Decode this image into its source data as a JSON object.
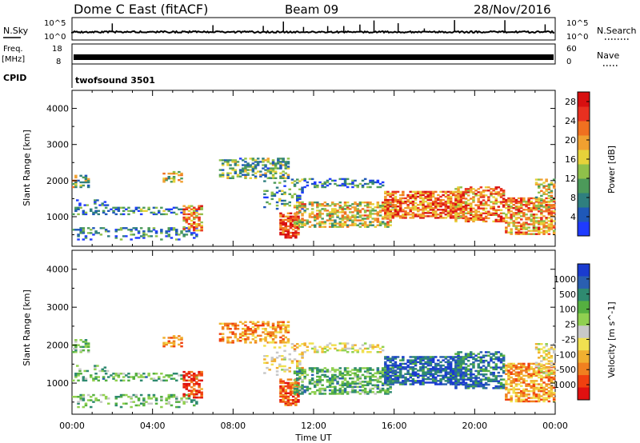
{
  "header": {
    "title": "Dome C East (fitACF)",
    "beam": "Beam 09",
    "date": "28/Nov/2016"
  },
  "param_panels": {
    "nsky": {
      "label": "N.Sky",
      "tick_top": "10^5",
      "tick_bottom": "10^0"
    },
    "nsearch": {
      "label": "N.Search",
      "tick_top": "10^5",
      "tick_bottom": "10^0",
      "line_style": "dotted"
    },
    "freq": {
      "label_1": "Freq.",
      "label_2": "[MHz]",
      "tick_top": "18",
      "tick_bottom": "8"
    },
    "nave": {
      "label": "Nave",
      "tick_top": "60",
      "tick_bottom": "0",
      "line_style": "dotted"
    },
    "cpid": {
      "label": "CPID",
      "value": "twofsound 3501"
    }
  },
  "chart_data": [
    {
      "type": "heatmap",
      "name_shown": "Power",
      "xlabel": "",
      "ylabel": "Slant Range [km]",
      "x_range": [
        "00:00",
        "24:00"
      ],
      "ylim": [
        180,
        4500
      ],
      "yticks": [
        "1000",
        "2000",
        "3000",
        "4000"
      ],
      "colorbar": {
        "label": "Power [dB]",
        "ticks": [
          "4",
          "8",
          "12",
          "16",
          "20",
          "24",
          "28"
        ],
        "range": [
          0,
          30
        ],
        "colors": [
          "#1f3bff",
          "#1f58b8",
          "#2f7f7f",
          "#4c9a5a",
          "#8fc04a",
          "#e6d23a",
          "#f0a030",
          "#f07020",
          "#e83020",
          "#d81010"
        ]
      }
    },
    {
      "type": "heatmap",
      "name_shown": "Velocity",
      "xlabel": "Time UT",
      "ylabel": "Slant Range [km]",
      "x_range": [
        "00:00",
        "24:00"
      ],
      "xticks": [
        "00:00",
        "04:00",
        "08:00",
        "12:00",
        "16:00",
        "20:00",
        "00:00"
      ],
      "ylim": [
        180,
        4500
      ],
      "yticks": [
        "1000",
        "2000",
        "3000",
        "4000"
      ],
      "colorbar": {
        "label": "Velocity [m s^-1]",
        "ticks": [
          "1000",
          "500",
          "100",
          "25",
          "-25",
          "-100",
          "-500",
          "-1000"
        ],
        "colors": [
          "#1a3bd0",
          "#2a5fb0",
          "#2f8a70",
          "#55b040",
          "#90d050",
          "#c8c8c8",
          "#f0e050",
          "#f0b030",
          "#f08020",
          "#f04010",
          "#e01010"
        ]
      }
    }
  ]
}
